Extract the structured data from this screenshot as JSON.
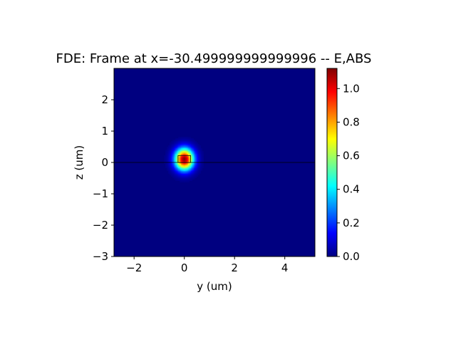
{
  "chart_data": {
    "type": "heatmap",
    "title": "FDE: Frame at x=-30.499999999999996 -- E,ABS",
    "xlabel": "y (um)",
    "ylabel": "z (um)",
    "xlim": [
      -2.8,
      5.2
    ],
    "ylim": [
      -3.0,
      3.0
    ],
    "x_ticks": [
      -2,
      0,
      2,
      4
    ],
    "x_tick_labels": [
      "−2",
      "0",
      "2",
      "4"
    ],
    "y_ticks": [
      -3,
      -2,
      -1,
      0,
      1,
      2
    ],
    "y_tick_labels": [
      "−3",
      "−2",
      "−1",
      "0",
      "1",
      "2"
    ],
    "colormap": "jet",
    "colorbar": {
      "range": [
        0.0,
        1.12
      ],
      "ticks": [
        0.0,
        0.2,
        0.4,
        0.6,
        0.8,
        1.0
      ],
      "tick_labels": [
        "0.0",
        "0.2",
        "0.4",
        "0.6",
        "0.8",
        "1.0"
      ]
    },
    "field": {
      "peak_value": 1.1,
      "center_y": 0.0,
      "center_z": 0.1,
      "sigma_y": 0.26,
      "sigma_z": 0.24,
      "background_value": 0.0
    },
    "waveguide_box": {
      "y_range": [
        -0.25,
        0.25
      ],
      "z_range": [
        0.0,
        0.22
      ]
    },
    "substrate_line_z": 0.0,
    "grid": false,
    "legend": "none"
  }
}
